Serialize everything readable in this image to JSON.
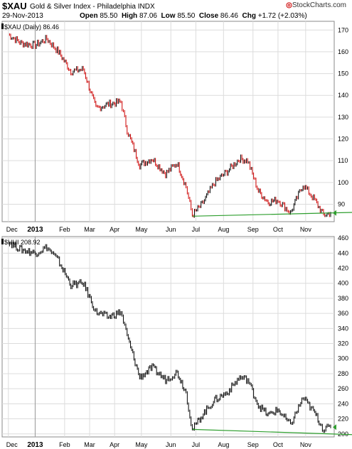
{
  "header": {
    "symbol": "$XAU",
    "name": "Gold & Silver Index - Philadelphia",
    "exchange": "INDX",
    "date": "29-Nov-2013",
    "open_label": "Open",
    "open": "85.50",
    "high_label": "High",
    "high": "87.06",
    "low_label": "Low",
    "low": "85.50",
    "close_label": "Close",
    "close": "86.46",
    "chg_label": "Chg",
    "chg": "+1.72 (+2.03%)",
    "brand": "StockCharts.com"
  },
  "panels": [
    {
      "label": "$XAU (Daily) 86.46"
    },
    {
      "label": "$HUI 208.92"
    }
  ],
  "x_labels": [
    "Dec",
    "2013",
    "Feb",
    "Mar",
    "Apr",
    "May",
    "Jun",
    "Jul",
    "Aug",
    "Sep",
    "Oct",
    "Nov"
  ],
  "colors": {
    "up": "#000000",
    "down": "#cc0000",
    "trendline": "#2e9e2e",
    "grid": "#dcdcdc"
  },
  "chart_data": [
    {
      "type": "line",
      "title": "$XAU (Daily) 86.46",
      "y_ticks": [
        90,
        100,
        110,
        120,
        130,
        140,
        150,
        160,
        170
      ],
      "ylim": [
        82,
        174
      ],
      "grid": true,
      "x": [
        "2012-12-03",
        "2012-12-17",
        "2013-01-02",
        "2013-01-15",
        "2013-01-28",
        "2013-02-11",
        "2013-02-25",
        "2013-03-11",
        "2013-03-25",
        "2013-04-08",
        "2013-04-15",
        "2013-04-29",
        "2013-05-13",
        "2013-05-28",
        "2013-06-10",
        "2013-06-20",
        "2013-06-27",
        "2013-07-08",
        "2013-07-22",
        "2013-08-05",
        "2013-08-19",
        "2013-08-28",
        "2013-09-09",
        "2013-09-20",
        "2013-10-01",
        "2013-10-15",
        "2013-10-29",
        "2013-11-11",
        "2013-11-21",
        "2013-11-29"
      ],
      "series": [
        {
          "values": [
            168,
            164,
            163,
            166,
            160,
            151,
            152,
            134,
            136,
            137,
            124,
            108,
            111,
            104,
            109,
            98,
            85,
            90,
            100,
            105,
            111,
            110,
            96,
            91,
            92,
            86,
            99,
            92,
            85,
            86
          ]
        }
      ],
      "trendline": {
        "x": [
          "2013-06-27",
          "2013-11-29"
        ],
        "y": [
          84.5,
          86
        ]
      }
    },
    {
      "type": "line",
      "title": "$HUI 208.92",
      "y_ticks": [
        200,
        220,
        240,
        260,
        280,
        300,
        320,
        340,
        360,
        380,
        400,
        420,
        440,
        460
      ],
      "ylim": [
        196,
        462
      ],
      "grid": true,
      "x": [
        "2012-12-03",
        "2012-12-17",
        "2013-01-02",
        "2013-01-15",
        "2013-01-28",
        "2013-02-11",
        "2013-02-25",
        "2013-03-11",
        "2013-03-25",
        "2013-04-08",
        "2013-04-15",
        "2013-04-29",
        "2013-05-13",
        "2013-05-28",
        "2013-06-10",
        "2013-06-20",
        "2013-06-27",
        "2013-07-08",
        "2013-07-22",
        "2013-08-05",
        "2013-08-19",
        "2013-08-28",
        "2013-09-09",
        "2013-09-20",
        "2013-10-01",
        "2013-10-15",
        "2013-10-29",
        "2013-11-11",
        "2013-11-21",
        "2013-11-29"
      ],
      "series": [
        {
          "values": [
            455,
            445,
            440,
            448,
            430,
            398,
            400,
            362,
            355,
            362,
            330,
            275,
            288,
            272,
            282,
            255,
            205,
            225,
            245,
            255,
            275,
            272,
            238,
            225,
            232,
            212,
            248,
            228,
            206,
            209
          ]
        }
      ],
      "trendline": {
        "x": [
          "2013-06-27",
          "2013-11-29"
        ],
        "y": [
          206,
          200
        ]
      }
    }
  ]
}
